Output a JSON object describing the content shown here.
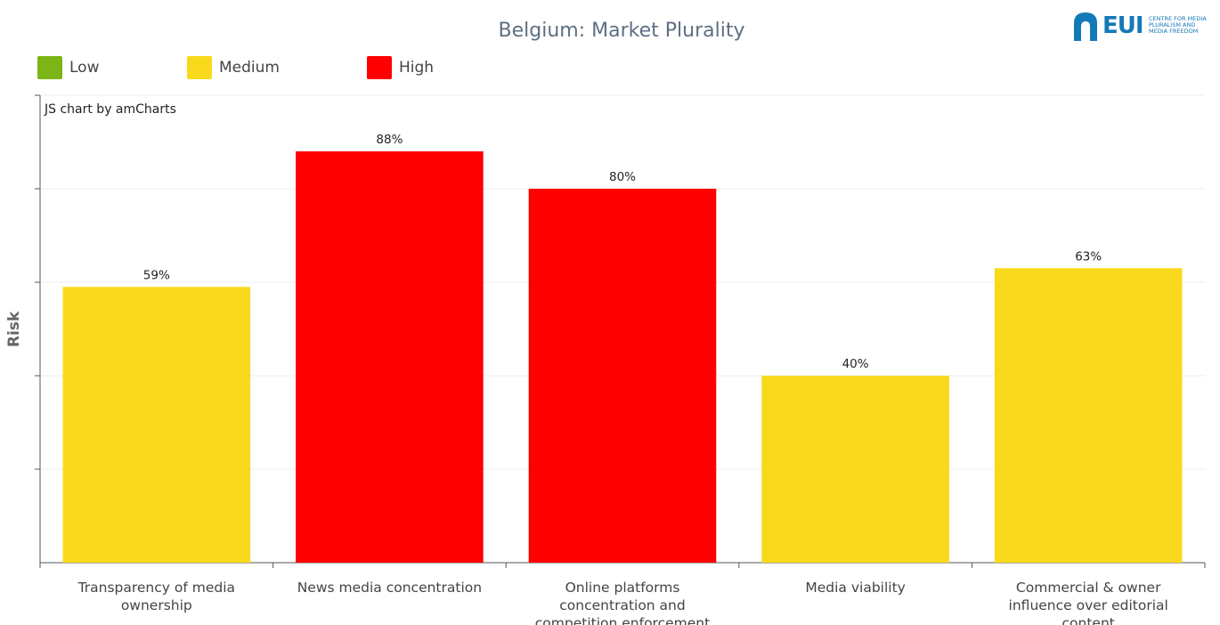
{
  "title": "Belgium: Market Plurality",
  "credit": "JS chart by amCharts",
  "logo": {
    "text": "EUI",
    "subtitle_lines": [
      "CENTRE FOR MEDIA",
      "PLURALISM AND",
      "MEDIA FREEDOM"
    ]
  },
  "legend": [
    {
      "label": "Low",
      "color": "#7cb518"
    },
    {
      "label": "Medium",
      "color": "#f9d91c"
    },
    {
      "label": "High",
      "color": "#ff0000"
    }
  ],
  "chart_data": {
    "type": "bar",
    "title": "Belgium: Market Plurality",
    "xlabel": "",
    "ylabel": "Risk",
    "ylim": [
      0,
      100
    ],
    "grid": true,
    "legend_position": "top-left",
    "categories": [
      "Transparency of media ownership",
      "News media concentration",
      "Online platforms concentration and competition enforcement",
      "Media viability",
      "Commercial & owner influence over editorial content"
    ],
    "category_label_lines": [
      [
        "Transparency of media",
        "ownership"
      ],
      [
        "News media concentration"
      ],
      [
        "Online platforms",
        "concentration and",
        "competition enforcement"
      ],
      [
        "Media viability"
      ],
      [
        "Commercial & owner",
        "influence over editorial",
        "content"
      ]
    ],
    "values": [
      59,
      88,
      80,
      40,
      63
    ],
    "value_labels": [
      "59%",
      "88%",
      "80%",
      "40%",
      "63%"
    ],
    "risk_levels": [
      "Medium",
      "High",
      "High",
      "Medium",
      "Medium"
    ],
    "colors": [
      "#f9d91c",
      "#ff0000",
      "#ff0000",
      "#f9d91c",
      "#f9d91c"
    ]
  }
}
